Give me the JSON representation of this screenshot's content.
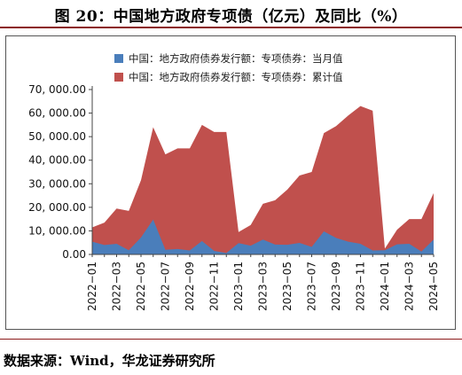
{
  "title": "图 20：中国地方政府专项债（亿元）及同比（%）",
  "source": "数据来源：Wind，华龙证券研究所",
  "colors": {
    "monthly": "#4a7ebb",
    "cumulative": "#c0504d",
    "frame": "#555555",
    "rule": "#8b1a1a"
  },
  "chart_data": {
    "type": "area",
    "x": [
      "2022-01",
      "2022-02",
      "2022-03",
      "2022-04",
      "2022-05",
      "2022-06",
      "2022-07",
      "2022-08",
      "2022-09",
      "2022-10",
      "2022-11",
      "2022-12",
      "2023-01",
      "2023-02",
      "2023-03",
      "2023-04",
      "2023-05",
      "2023-06",
      "2023-07",
      "2023-08",
      "2023-09",
      "2023-10",
      "2023-11",
      "2023-12",
      "2024-01",
      "2024-02",
      "2024-03",
      "2024-04",
      "2024-05"
    ],
    "xtick_labels": [
      "2022−01",
      "2022−03",
      "2022−05",
      "2022−07",
      "2022−09",
      "2022−11",
      "2023−01",
      "2023−03",
      "2023−05",
      "2023−07",
      "2023−09",
      "2023−11",
      "2024−01",
      "2024−03",
      "2024−05"
    ],
    "ylim": [
      0,
      70000
    ],
    "ytick_labels": [
      "0.00",
      "10, 000.00",
      "20, 000.00",
      "30, 000.00",
      "40, 000.00",
      "50, 000.00",
      "60, 000.00",
      "70, 000.00"
    ],
    "yticks": [
      0,
      10000,
      20000,
      30000,
      40000,
      50000,
      60000,
      70000
    ],
    "legend_position": "top-left",
    "series": [
      {
        "name": "中国：地方政府债券发行额：专项债券：当月值",
        "values": [
          5400,
          4000,
          4500,
          1800,
          7200,
          14800,
          2000,
          2300,
          1700,
          5700,
          1500,
          600,
          4800,
          3700,
          6300,
          4200,
          4100,
          4900,
          3200,
          9800,
          7000,
          5400,
          4500,
          1700,
          1800,
          4300,
          4500,
          1200,
          6300
        ]
      },
      {
        "name": "中国：地方政府债券发行额：专项债券：累计值",
        "values": [
          11500,
          13500,
          19500,
          18500,
          31500,
          54000,
          42500,
          45000,
          45000,
          55000,
          52000,
          52000,
          9500,
          12500,
          21500,
          23000,
          27500,
          33500,
          35000,
          51500,
          54500,
          59000,
          63000,
          61000,
          2500,
          10500,
          15000,
          15000,
          26000
        ]
      }
    ]
  }
}
